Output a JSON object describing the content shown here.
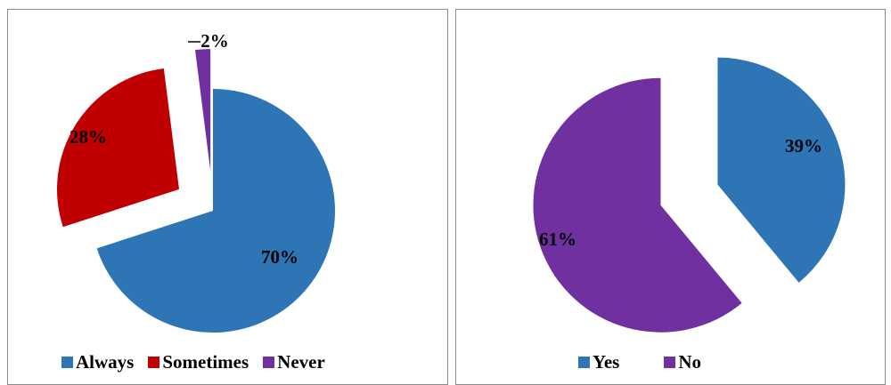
{
  "chart_data": [
    {
      "type": "pie",
      "title": "",
      "categories": [
        "Always",
        "Sometimes",
        "Never"
      ],
      "values": [
        70,
        28,
        2
      ],
      "labels": [
        "70%",
        "28%",
        "2%"
      ],
      "colors": [
        "#2E75B6",
        "#C00000",
        "#7030A0"
      ],
      "exploded": true,
      "legend": "bottom"
    },
    {
      "type": "pie",
      "title": "",
      "categories": [
        "Yes",
        "No"
      ],
      "values": [
        39,
        61
      ],
      "labels": [
        "39%",
        "61%"
      ],
      "colors": [
        "#2E75B6",
        "#7030A0"
      ],
      "exploded": true,
      "legend": "bottom"
    }
  ]
}
